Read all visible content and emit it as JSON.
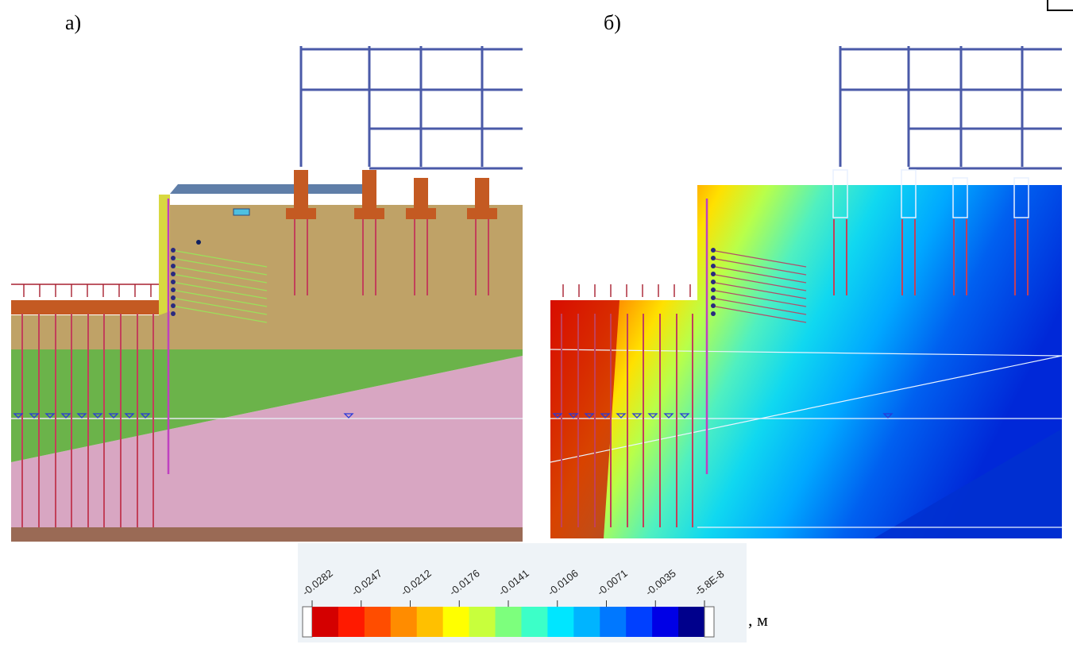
{
  "panels": {
    "left_label": "а)",
    "right_label": "б)"
  },
  "legend": {
    "ticks": [
      "-0.0282",
      "-0.0247",
      "-0.0212",
      "-0.0176",
      "-0.0141",
      "-0.0106",
      "-0.0071",
      "-0.0035",
      "-5.8E-8"
    ],
    "colors": [
      "#d40000",
      "#ff1a00",
      "#ff4d00",
      "#ff8c00",
      "#ffc000",
      "#ffff00",
      "#c8ff3c",
      "#7dff7d",
      "#3cffc8",
      "#00e6ff",
      "#00b4ff",
      "#0078ff",
      "#0040ff",
      "#0000e6",
      "#00008c"
    ],
    "unit": ", м"
  },
  "colors": {
    "soil_top": "#bfa267",
    "soil_green": "#6bb34a",
    "soil_pink": "#d8a6c2",
    "soil_bottom": "#9a6a55",
    "frame": "#4a5aa8",
    "pile": "#c2405a",
    "cap": "#c45a22"
  }
}
